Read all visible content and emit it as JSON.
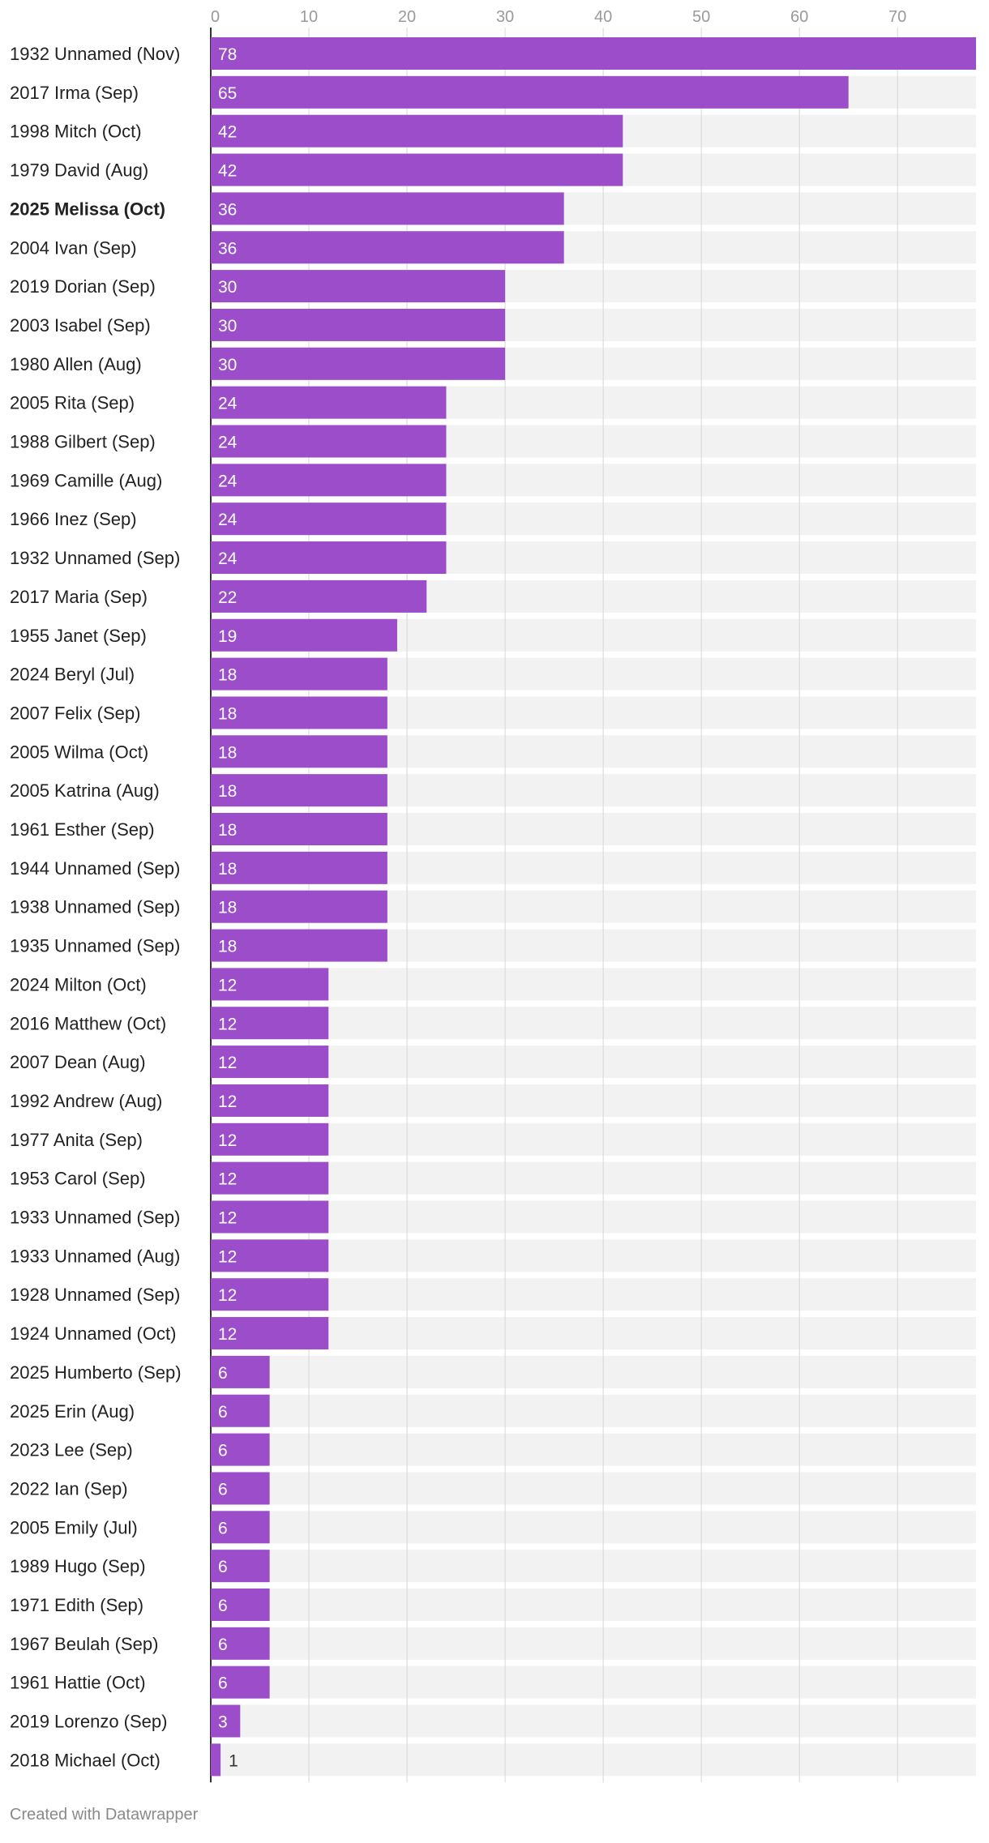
{
  "chart_data": {
    "type": "bar",
    "orientation": "horizontal",
    "title": "",
    "xlabel": "",
    "ylabel": "",
    "xlim": [
      0,
      78
    ],
    "x_ticks": [
      0,
      10,
      20,
      30,
      40,
      50,
      60,
      70
    ],
    "grid": true,
    "bar_color": "#9b4dca",
    "track_color": "#f2f2f2",
    "highlight_category": "2025 Melissa (Oct)",
    "categories": [
      "1932 Unnamed (Nov)",
      "2017 Irma (Sep)",
      "1998 Mitch (Oct)",
      "1979 David (Aug)",
      "2025 Melissa (Oct)",
      "2004 Ivan (Sep)",
      "2019 Dorian (Sep)",
      "2003 Isabel (Sep)",
      "1980 Allen (Aug)",
      "2005 Rita (Sep)",
      "1988 Gilbert (Sep)",
      "1969 Camille (Aug)",
      "1966 Inez (Sep)",
      "1932 Unnamed (Sep)",
      "2017 Maria (Sep)",
      "1955 Janet (Sep)",
      "2024 Beryl (Jul)",
      "2007 Felix (Sep)",
      "2005 Wilma (Oct)",
      "2005 Katrina (Aug)",
      "1961 Esther (Sep)",
      "1944 Unnamed (Sep)",
      "1938 Unnamed (Sep)",
      "1935 Unnamed (Sep)",
      "2024 Milton (Oct)",
      "2016 Matthew (Oct)",
      "2007 Dean (Aug)",
      "1992 Andrew (Aug)",
      "1977 Anita (Sep)",
      "1953 Carol (Sep)",
      "1933 Unnamed (Sep)",
      "1933 Unnamed (Aug)",
      "1928 Unnamed (Sep)",
      "1924 Unnamed (Oct)",
      "2025 Humberto (Sep)",
      "2025 Erin (Aug)",
      "2023 Lee (Sep)",
      "2022 Ian (Sep)",
      "2005 Emily (Jul)",
      "1989 Hugo (Sep)",
      "1971 Edith (Sep)",
      "1967 Beulah (Sep)",
      "1961 Hattie (Oct)",
      "2019 Lorenzo (Sep)",
      "2018 Michael (Oct)"
    ],
    "values": [
      78,
      65,
      42,
      42,
      36,
      36,
      30,
      30,
      30,
      24,
      24,
      24,
      24,
      24,
      22,
      19,
      18,
      18,
      18,
      18,
      18,
      18,
      18,
      18,
      12,
      12,
      12,
      12,
      12,
      12,
      12,
      12,
      12,
      12,
      6,
      6,
      6,
      6,
      6,
      6,
      6,
      6,
      6,
      3,
      1
    ]
  },
  "footer": {
    "credit": "Created with Datawrapper"
  }
}
